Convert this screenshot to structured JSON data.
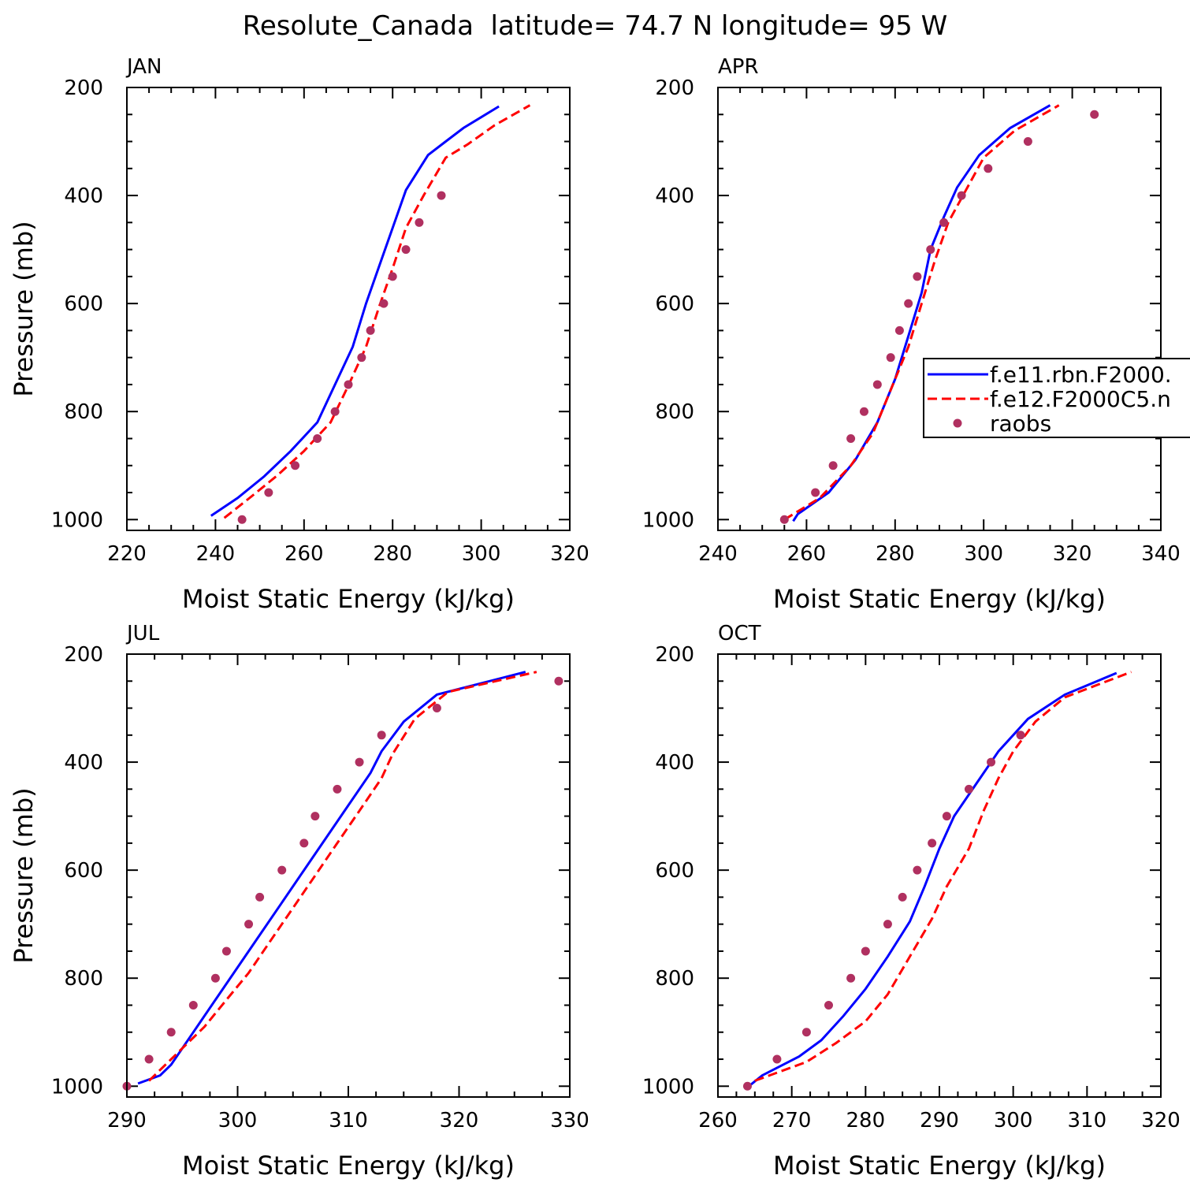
{
  "figure_title": "Resolute_Canada  latitude= 74.7 N longitude= 95 W",
  "legend": {
    "entries": [
      {
        "label": "f.e11.rbn.F2000.",
        "color": "#0000ff",
        "style": "solid"
      },
      {
        "label": "f.e12.F2000C5.n",
        "color": "#ff0000",
        "style": "dashed"
      },
      {
        "label": "raobs",
        "color": "#b03060",
        "style": "dots"
      }
    ]
  },
  "chart_data": [
    {
      "type": "line",
      "title": "JAN",
      "xlabel": "Moist Static Energy (kJ/kg)",
      "ylabel": "Pressure (mb)",
      "xlim": [
        220,
        320
      ],
      "ylim": [
        1020,
        200
      ],
      "xticks": [
        "220",
        "240",
        "260",
        "280",
        "300",
        "320"
      ],
      "yticks": [
        "200",
        "400",
        "600",
        "800",
        "1000"
      ],
      "series": [
        {
          "name": "f.e11.rbn.F2000.",
          "color": "#0000ff",
          "style": "solid",
          "points": [
            [
              239,
              993
            ],
            [
              245,
              960
            ],
            [
              251,
              920
            ],
            [
              257,
              873
            ],
            [
              263,
              820
            ],
            [
              267,
              750
            ],
            [
              271,
              680
            ],
            [
              274,
              600
            ],
            [
              277,
              530
            ],
            [
              280,
              460
            ],
            [
              283,
              390
            ],
            [
              288,
              325
            ],
            [
              292,
              300
            ],
            [
              296,
              275
            ],
            [
              300,
              255
            ],
            [
              304,
              235
            ]
          ]
        },
        {
          "name": "f.e12.F2000C5.n",
          "color": "#ff0000",
          "style": "dashed",
          "points": [
            [
              242,
              997
            ],
            [
              248,
              958
            ],
            [
              254,
              918
            ],
            [
              260,
              873
            ],
            [
              266,
              820
            ],
            [
              270,
              752
            ],
            [
              274,
              680
            ],
            [
              277,
              605
            ],
            [
              280,
              535
            ],
            [
              283,
              460
            ],
            [
              287,
              400
            ],
            [
              292,
              330
            ],
            [
              297,
              305
            ],
            [
              303,
              270
            ],
            [
              311,
              233
            ]
          ]
        },
        {
          "name": "raobs",
          "color": "#b03060",
          "style": "dots",
          "points": [
            [
              246,
              1000
            ],
            [
              252,
              950
            ],
            [
              258,
              900
            ],
            [
              263,
              850
            ],
            [
              267,
              800
            ],
            [
              270,
              750
            ],
            [
              273,
              700
            ],
            [
              275,
              650
            ],
            [
              278,
              600
            ],
            [
              280,
              550
            ],
            [
              283,
              500
            ],
            [
              286,
              450
            ],
            [
              291,
              400
            ]
          ]
        }
      ]
    },
    {
      "type": "line",
      "title": "APR",
      "xlabel": "Moist Static Energy (kJ/kg)",
      "ylabel": "",
      "xlim": [
        240,
        340
      ],
      "ylim": [
        1020,
        200
      ],
      "xticks": [
        "240",
        "260",
        "280",
        "300",
        "320",
        "340"
      ],
      "yticks": [
        "200",
        "400",
        "600",
        "800",
        "1000"
      ],
      "series": [
        {
          "name": "f.e11.rbn.F2000.",
          "color": "#0000ff",
          "style": "solid",
          "points": [
            [
              257,
              1003
            ],
            [
              258,
              990
            ],
            [
              265,
              950
            ],
            [
              271,
              890
            ],
            [
              276,
              820
            ],
            [
              280,
              740
            ],
            [
              283,
              660
            ],
            [
              286,
              580
            ],
            [
              288,
              500
            ],
            [
              291,
              440
            ],
            [
              294,
              385
            ],
            [
              299,
              325
            ],
            [
              306,
              275
            ],
            [
              315,
              233
            ]
          ]
        },
        {
          "name": "f.e12.F2000C5.n",
          "color": "#ff0000",
          "style": "dashed",
          "points": [
            [
              255,
              1000
            ],
            [
              263,
              960
            ],
            [
              270,
              900
            ],
            [
              275,
              840
            ],
            [
              279,
              760
            ],
            [
              283,
              680
            ],
            [
              286,
              600
            ],
            [
              289,
              520
            ],
            [
              292,
              450
            ],
            [
              296,
              390
            ],
            [
              300,
              330
            ],
            [
              307,
              280
            ],
            [
              317,
              233
            ]
          ]
        },
        {
          "name": "raobs",
          "color": "#b03060",
          "style": "dots",
          "points": [
            [
              255,
              1000
            ],
            [
              262,
              950
            ],
            [
              266,
              900
            ],
            [
              270,
              850
            ],
            [
              273,
              800
            ],
            [
              276,
              750
            ],
            [
              279,
              700
            ],
            [
              281,
              650
            ],
            [
              283,
              600
            ],
            [
              285,
              550
            ],
            [
              288,
              500
            ],
            [
              291,
              450
            ],
            [
              295,
              400
            ],
            [
              301,
              350
            ],
            [
              310,
              300
            ],
            [
              325,
              250
            ]
          ]
        }
      ]
    },
    {
      "type": "line",
      "title": "JUL",
      "xlabel": "Moist Static Energy (kJ/kg)",
      "ylabel": "Pressure (mb)",
      "xlim": [
        290,
        330
      ],
      "ylim": [
        1020,
        200
      ],
      "xticks": [
        "290",
        "300",
        "310",
        "320",
        "330"
      ],
      "yticks": [
        "200",
        "400",
        "600",
        "800",
        "1000"
      ],
      "series": [
        {
          "name": "f.e11.rbn.F2000.",
          "color": "#0000ff",
          "style": "solid",
          "points": [
            [
              291,
              995
            ],
            [
              293,
              980
            ],
            [
              294,
              960
            ],
            [
              296,
              900
            ],
            [
              298,
              840
            ],
            [
              300,
              780
            ],
            [
              302,
              720
            ],
            [
              304,
              660
            ],
            [
              306,
              600
            ],
            [
              308,
              540
            ],
            [
              310,
              480
            ],
            [
              312,
              420
            ],
            [
              313,
              380
            ],
            [
              315,
              325
            ],
            [
              318,
              275
            ],
            [
              326,
              233
            ]
          ]
        },
        {
          "name": "f.e12.F2000C5.n",
          "color": "#ff0000",
          "style": "dashed",
          "points": [
            [
              292,
              990
            ],
            [
              294,
              950
            ],
            [
              297,
              890
            ],
            [
              299,
              840
            ],
            [
              301,
              790
            ],
            [
              303,
              730
            ],
            [
              305,
              670
            ],
            [
              307,
              610
            ],
            [
              309,
              550
            ],
            [
              311,
              490
            ],
            [
              313,
              430
            ],
            [
              314,
              385
            ],
            [
              316,
              320
            ],
            [
              319,
              270
            ],
            [
              327,
              233
            ]
          ]
        },
        {
          "name": "raobs",
          "color": "#b03060",
          "style": "dots",
          "points": [
            [
              290,
              1000
            ],
            [
              292,
              950
            ],
            [
              294,
              900
            ],
            [
              296,
              850
            ],
            [
              298,
              800
            ],
            [
              299,
              750
            ],
            [
              301,
              700
            ],
            [
              302,
              650
            ],
            [
              304,
              600
            ],
            [
              306,
              550
            ],
            [
              307,
              500
            ],
            [
              309,
              450
            ],
            [
              311,
              400
            ],
            [
              313,
              350
            ],
            [
              318,
              300
            ],
            [
              329,
              250
            ]
          ]
        }
      ]
    },
    {
      "type": "line",
      "title": "OCT",
      "xlabel": "Moist Static Energy (kJ/kg)",
      "ylabel": "",
      "xlim": [
        260,
        320
      ],
      "ylim": [
        1020,
        200
      ],
      "xticks": [
        "260",
        "270",
        "280",
        "290",
        "300",
        "310",
        "320"
      ],
      "yticks": [
        "200",
        "400",
        "600",
        "800",
        "1000"
      ],
      "series": [
        {
          "name": "f.e11.rbn.F2000.",
          "color": "#0000ff",
          "style": "solid",
          "points": [
            [
              264,
              1002
            ],
            [
              266,
              980
            ],
            [
              271,
              945
            ],
            [
              274,
              915
            ],
            [
              277,
              870
            ],
            [
              280,
              820
            ],
            [
              283,
              760
            ],
            [
              286,
              695
            ],
            [
              288,
              630
            ],
            [
              290,
              560
            ],
            [
              292,
              500
            ],
            [
              295,
              440
            ],
            [
              298,
              380
            ],
            [
              302,
              320
            ],
            [
              307,
              275
            ],
            [
              314,
              235
            ]
          ]
        },
        {
          "name": "f.e12.F2000C5.n",
          "color": "#ff0000",
          "style": "dashed",
          "points": [
            [
              265,
              990
            ],
            [
              272,
              955
            ],
            [
              276,
              920
            ],
            [
              280,
              880
            ],
            [
              283,
              830
            ],
            [
              286,
              760
            ],
            [
              289,
              690
            ],
            [
              291,
              630
            ],
            [
              294,
              560
            ],
            [
              296,
              490
            ],
            [
              298,
              430
            ],
            [
              300,
              380
            ],
            [
              303,
              325
            ],
            [
              307,
              280
            ],
            [
              316,
              233
            ]
          ]
        },
        {
          "name": "raobs",
          "color": "#b03060",
          "style": "dots",
          "points": [
            [
              264,
              1000
            ],
            [
              268,
              950
            ],
            [
              272,
              900
            ],
            [
              275,
              850
            ],
            [
              278,
              800
            ],
            [
              280,
              750
            ],
            [
              283,
              700
            ],
            [
              285,
              650
            ],
            [
              287,
              600
            ],
            [
              289,
              550
            ],
            [
              291,
              500
            ],
            [
              294,
              450
            ],
            [
              297,
              400
            ],
            [
              301,
              350
            ]
          ]
        }
      ]
    }
  ]
}
